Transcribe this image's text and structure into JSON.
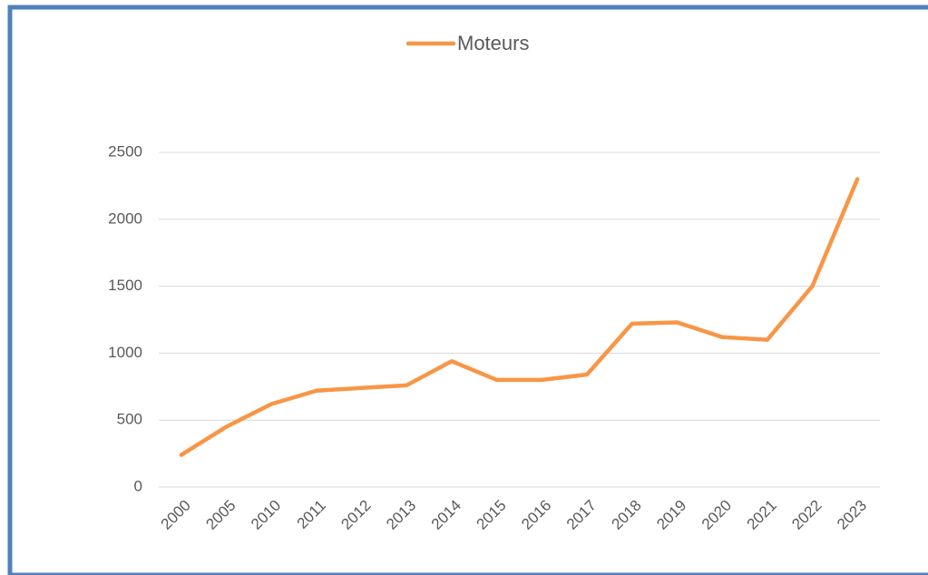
{
  "chart_data": {
    "type": "line",
    "categories": [
      "2000",
      "2005",
      "2010",
      "2011",
      "2012",
      "2013",
      "2014",
      "2015",
      "2016",
      "2017",
      "2018",
      "2019",
      "2020",
      "2021",
      "2022",
      "2023"
    ],
    "series": [
      {
        "name": "Moteurs",
        "color": "#f79646",
        "values": [
          240,
          450,
          620,
          720,
          740,
          760,
          940,
          800,
          800,
          840,
          1220,
          1230,
          1120,
          1100,
          1500,
          2300
        ]
      }
    ],
    "ylim": [
      0,
      2500
    ],
    "yticks": [
      0,
      500,
      1000,
      1500,
      2000,
      2500
    ],
    "grid": true,
    "legend": "top"
  }
}
